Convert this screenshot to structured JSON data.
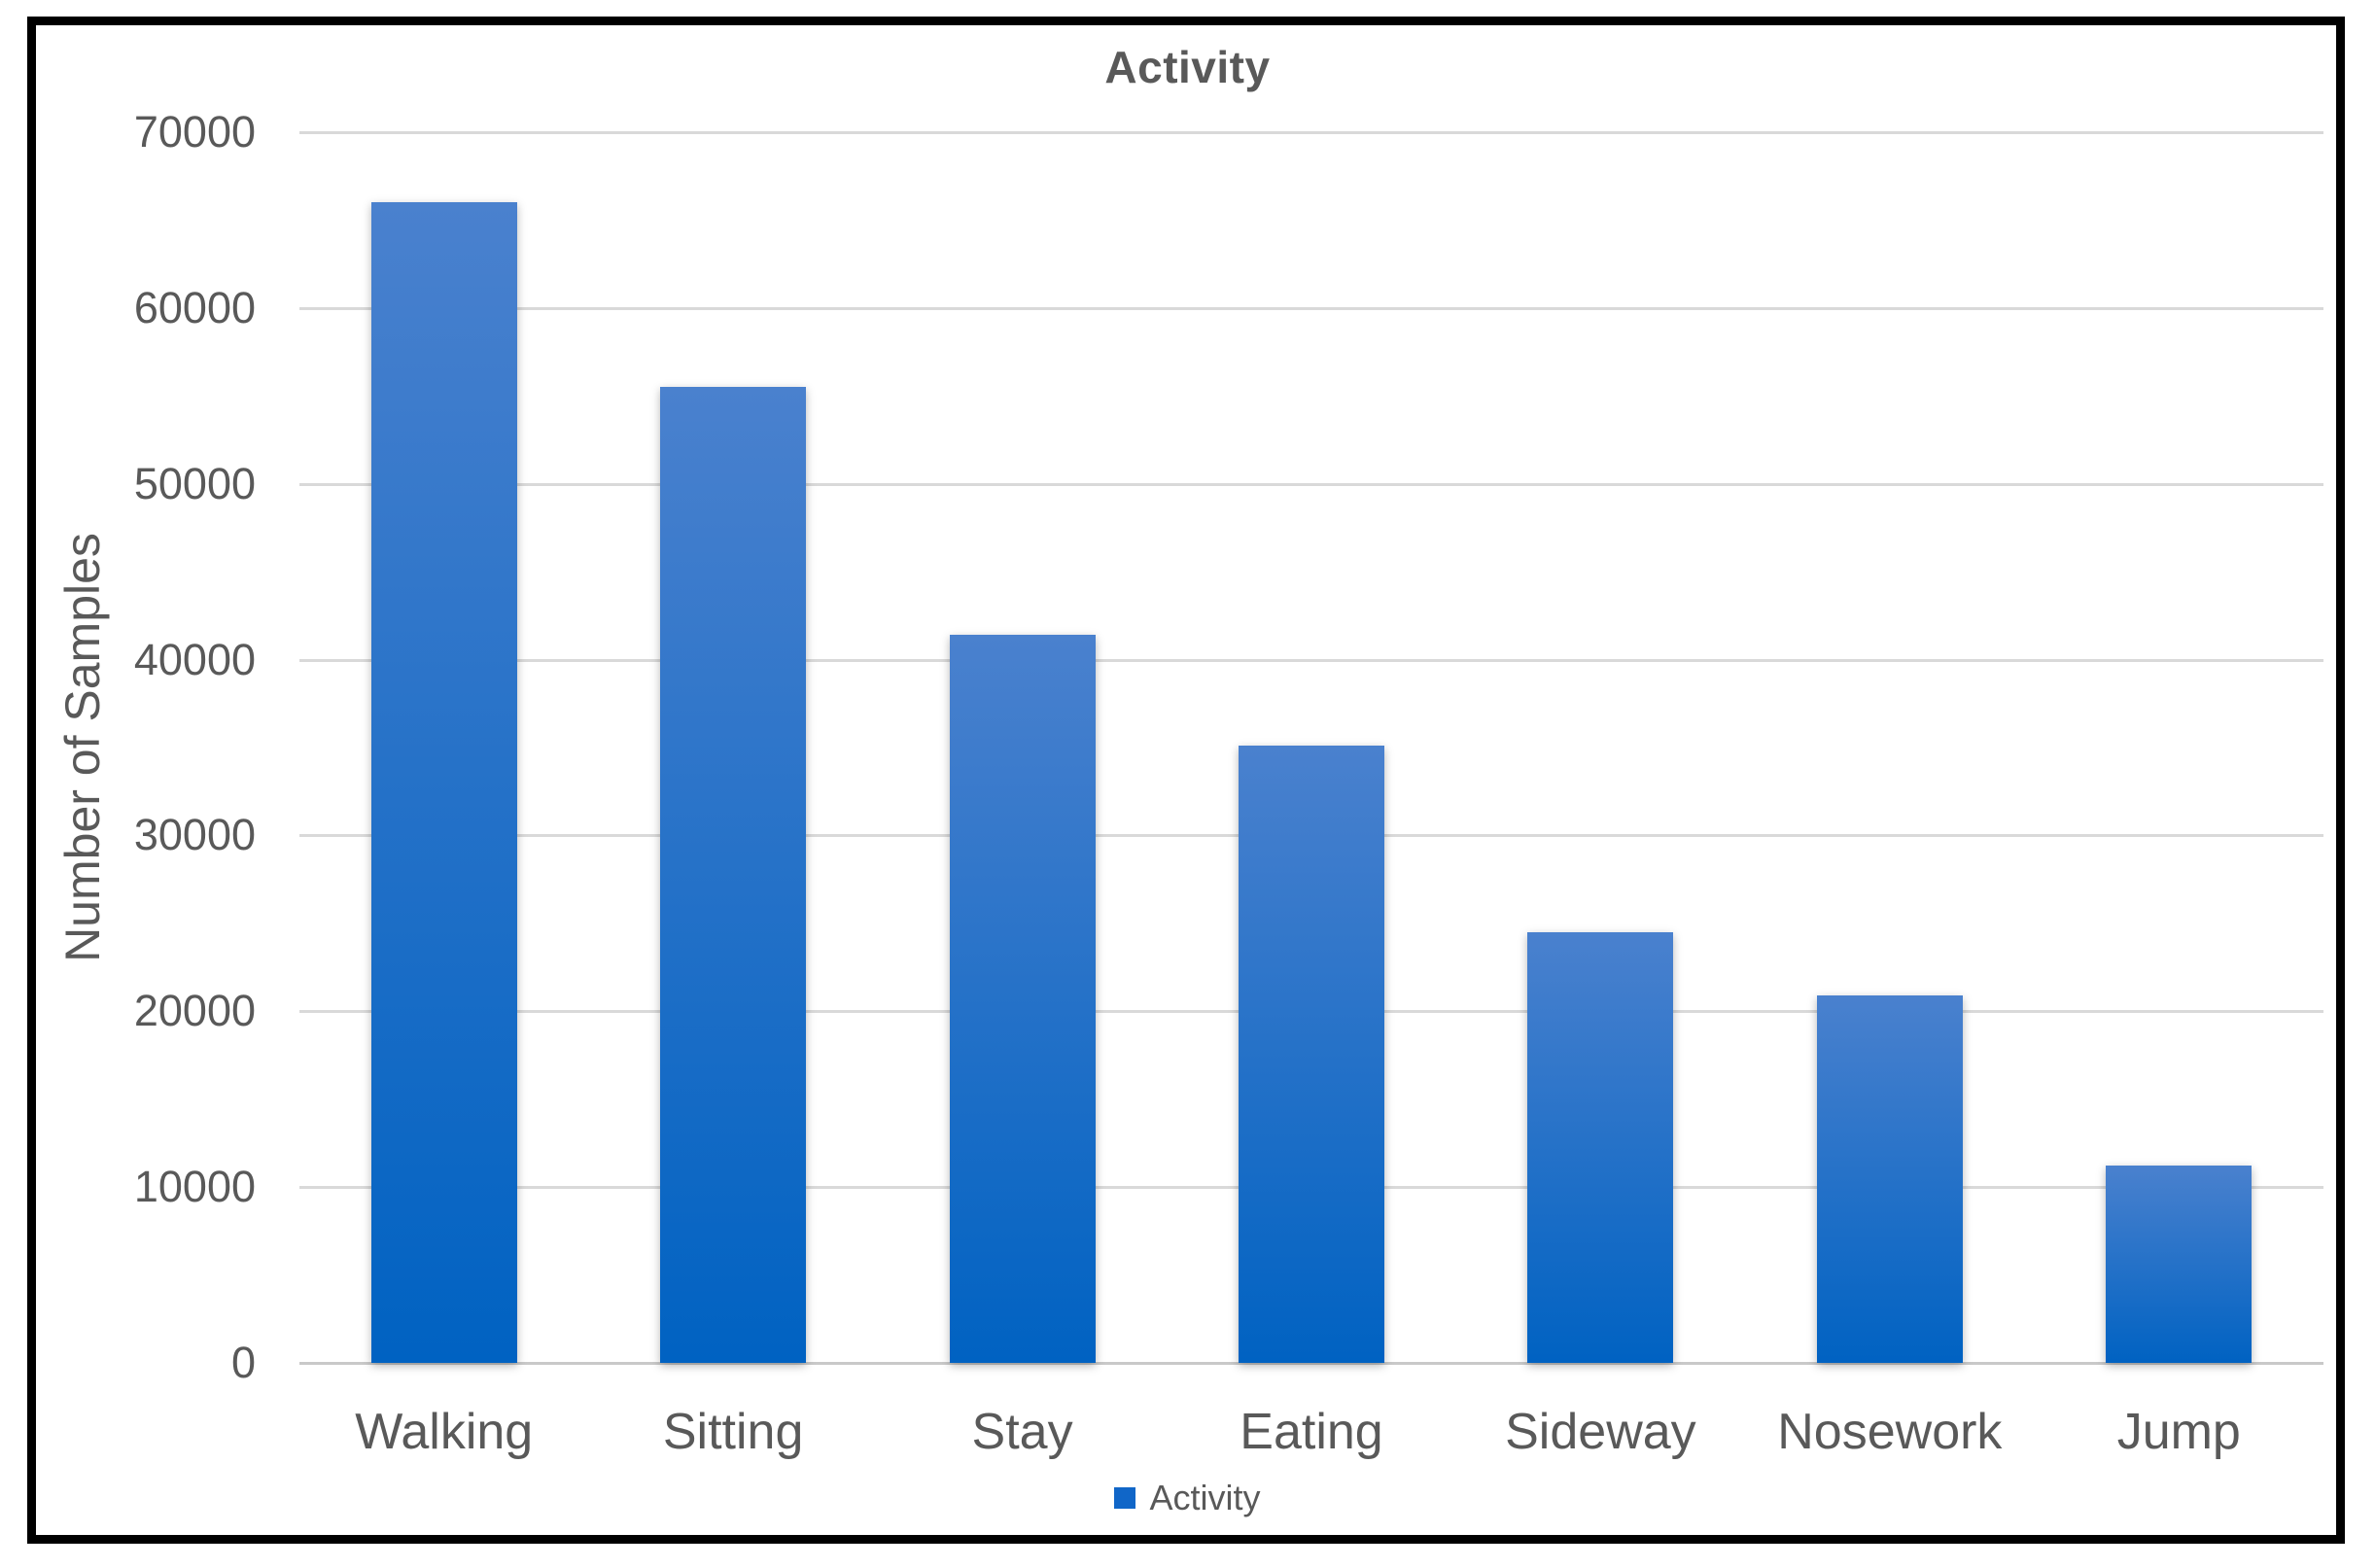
{
  "figure": {
    "background": "#ffffff",
    "frame_border_color": "#000000"
  },
  "chart_data": {
    "type": "bar",
    "title": "Activity",
    "categories": [
      "Walking",
      "Sitting",
      "Stay",
      "Eating",
      "Sideway",
      "Nosework",
      "Jump"
    ],
    "values": [
      66000,
      55500,
      41400,
      35100,
      24500,
      20900,
      11200
    ],
    "xlabel": "",
    "ylabel": "Number of Samples",
    "ylim": [
      0,
      70000
    ],
    "yticks": [
      0,
      10000,
      20000,
      30000,
      40000,
      50000,
      60000,
      70000
    ],
    "grid": "horizontal",
    "legend": {
      "position": "bottom-center",
      "entries": [
        {
          "label": "Activity",
          "color": "#1066c8"
        }
      ]
    },
    "colors": {
      "bar_gradient_top": "#4a81ce",
      "bar_gradient_bottom": "#0062c2",
      "text": "#595959",
      "gridline": "#d9d9d9"
    }
  }
}
